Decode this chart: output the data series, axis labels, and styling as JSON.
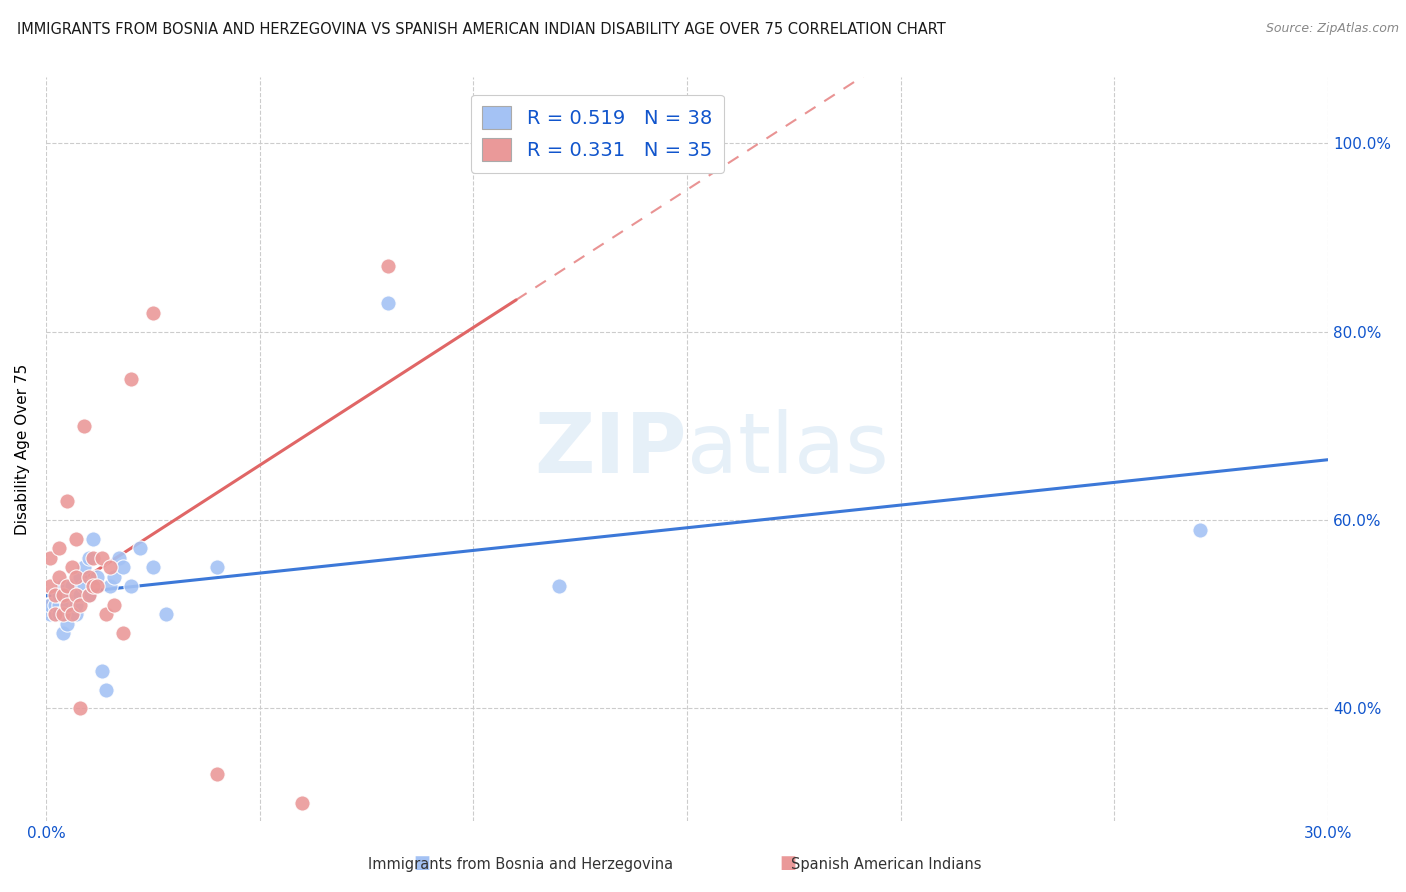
{
  "title": "IMMIGRANTS FROM BOSNIA AND HERZEGOVINA VS SPANISH AMERICAN INDIAN DISABILITY AGE OVER 75 CORRELATION CHART",
  "source": "Source: ZipAtlas.com",
  "ylabel": "Disability Age Over 75",
  "x_min": 0.0,
  "x_max": 0.3,
  "y_min": 0.28,
  "y_max": 1.07,
  "x_tick_positions": [
    0.0,
    0.05,
    0.1,
    0.15,
    0.2,
    0.25,
    0.3
  ],
  "x_tick_labels": [
    "0.0%",
    "",
    "",
    "",
    "",
    "",
    "30.0%"
  ],
  "y_tick_positions": [
    0.4,
    0.6,
    0.8,
    1.0
  ],
  "y_tick_labels_right": [
    "40.0%",
    "60.0%",
    "80.0%",
    "100.0%"
  ],
  "watermark": "ZIPatlas",
  "blue_color": "#a4c2f4",
  "pink_color": "#ea9999",
  "blue_line_color": "#3c78d8",
  "pink_line_color": "#e06666",
  "R_blue": 0.519,
  "N_blue": 38,
  "R_pink": 0.331,
  "N_pink": 35,
  "legend_label_blue": "Immigrants from Bosnia and Herzegovina",
  "legend_label_pink": "Spanish American Indians",
  "legend_text_color": "#1155cc",
  "blue_scatter_x": [
    0.001,
    0.001,
    0.002,
    0.002,
    0.003,
    0.003,
    0.003,
    0.004,
    0.004,
    0.005,
    0.005,
    0.005,
    0.006,
    0.006,
    0.007,
    0.007,
    0.008,
    0.008,
    0.009,
    0.009,
    0.01,
    0.01,
    0.011,
    0.012,
    0.013,
    0.014,
    0.015,
    0.016,
    0.017,
    0.018,
    0.02,
    0.022,
    0.025,
    0.028,
    0.04,
    0.08,
    0.12,
    0.27
  ],
  "blue_scatter_y": [
    0.5,
    0.51,
    0.5,
    0.51,
    0.51,
    0.52,
    0.5,
    0.48,
    0.53,
    0.5,
    0.49,
    0.51,
    0.52,
    0.53,
    0.5,
    0.51,
    0.52,
    0.54,
    0.53,
    0.55,
    0.52,
    0.56,
    0.58,
    0.54,
    0.44,
    0.42,
    0.53,
    0.54,
    0.56,
    0.55,
    0.53,
    0.57,
    0.55,
    0.5,
    0.55,
    0.83,
    0.53,
    0.59
  ],
  "pink_scatter_x": [
    0.001,
    0.001,
    0.002,
    0.002,
    0.003,
    0.003,
    0.004,
    0.004,
    0.005,
    0.005,
    0.005,
    0.006,
    0.006,
    0.007,
    0.007,
    0.007,
    0.008,
    0.008,
    0.009,
    0.01,
    0.01,
    0.011,
    0.011,
    0.012,
    0.013,
    0.014,
    0.015,
    0.016,
    0.018,
    0.02,
    0.025,
    0.04,
    0.06,
    0.08,
    0.11
  ],
  "pink_scatter_y": [
    0.53,
    0.56,
    0.52,
    0.5,
    0.54,
    0.57,
    0.5,
    0.52,
    0.53,
    0.51,
    0.62,
    0.55,
    0.5,
    0.52,
    0.54,
    0.58,
    0.51,
    0.4,
    0.7,
    0.52,
    0.54,
    0.53,
    0.56,
    0.53,
    0.56,
    0.5,
    0.55,
    0.51,
    0.48,
    0.75,
    0.82,
    0.33,
    0.3,
    0.87,
    1.0
  ],
  "background_color": "#ffffff",
  "grid_color": "#cccccc"
}
